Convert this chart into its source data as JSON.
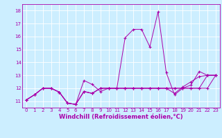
{
  "bg_color": "#cceeff",
  "line_color": "#aa00aa",
  "grid_color": "#ffffff",
  "xlabel": "Windchill (Refroidissement éolien,°C)",
  "xlabel_color": "#aa00aa",
  "xlim": [
    -0.5,
    23.5
  ],
  "ylim": [
    10.5,
    18.5
  ],
  "yticks": [
    11,
    12,
    13,
    14,
    15,
    16,
    17,
    18
  ],
  "xticks": [
    0,
    1,
    2,
    3,
    4,
    5,
    6,
    7,
    8,
    9,
    10,
    11,
    12,
    13,
    14,
    15,
    16,
    17,
    18,
    19,
    20,
    21,
    22,
    23
  ],
  "lines": [
    {
      "x": [
        0,
        1,
        2,
        3,
        4,
        5,
        6,
        7,
        8,
        9,
        10,
        11,
        12,
        13,
        14,
        15,
        16,
        17,
        18,
        19,
        20,
        21,
        22,
        23
      ],
      "y": [
        11.1,
        11.5,
        12.0,
        12.0,
        11.7,
        10.85,
        10.75,
        12.6,
        12.3,
        11.75,
        12.0,
        12.0,
        12.0,
        12.0,
        12.0,
        12.0,
        12.0,
        12.0,
        12.0,
        12.0,
        12.0,
        12.0,
        12.0,
        13.0
      ]
    },
    {
      "x": [
        0,
        1,
        2,
        3,
        4,
        5,
        6,
        7,
        8,
        9,
        10,
        11,
        12,
        13,
        14,
        15,
        16,
        17,
        18,
        19,
        20,
        21,
        22,
        23
      ],
      "y": [
        11.1,
        11.5,
        12.0,
        12.0,
        11.7,
        10.85,
        10.75,
        11.75,
        11.6,
        12.0,
        12.0,
        12.0,
        15.9,
        16.55,
        16.55,
        15.2,
        17.9,
        13.2,
        11.5,
        12.0,
        12.25,
        13.3,
        13.0,
        13.0
      ]
    },
    {
      "x": [
        0,
        1,
        2,
        3,
        4,
        5,
        6,
        7,
        8,
        9,
        10,
        11,
        12,
        13,
        14,
        15,
        16,
        17,
        18,
        19,
        20,
        21,
        22,
        23
      ],
      "y": [
        11.1,
        11.5,
        12.0,
        12.0,
        11.7,
        10.85,
        10.75,
        11.75,
        11.6,
        12.0,
        12.0,
        12.0,
        12.0,
        12.0,
        12.0,
        12.0,
        12.0,
        12.0,
        11.6,
        12.1,
        12.5,
        12.9,
        13.0,
        13.0
      ]
    },
    {
      "x": [
        0,
        1,
        2,
        3,
        4,
        5,
        6,
        7,
        8,
        9,
        10,
        11,
        12,
        13,
        14,
        15,
        16,
        17,
        18,
        19,
        20,
        21,
        22,
        23
      ],
      "y": [
        11.1,
        11.5,
        12.0,
        12.0,
        11.7,
        10.85,
        10.75,
        11.75,
        11.6,
        12.0,
        12.0,
        12.0,
        12.0,
        12.0,
        12.0,
        12.0,
        12.0,
        12.0,
        12.0,
        12.0,
        12.0,
        12.0,
        13.0,
        13.0
      ]
    }
  ],
  "marker": "+",
  "markersize": 3,
  "linewidth": 0.7,
  "tick_fontsize": 5.0,
  "xlabel_fontsize": 6.0
}
